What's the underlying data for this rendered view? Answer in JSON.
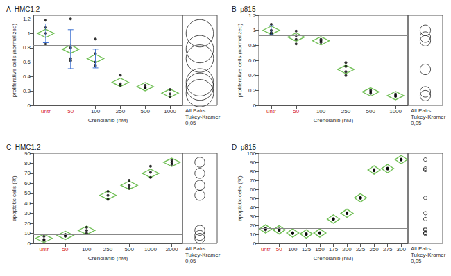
{
  "chart_data": [
    {
      "type": "scatter",
      "panel_label": "A",
      "title": "HMC1.2",
      "x_label": "Crenolanib (nM)",
      "y_label": "proliferative cells (normalized)",
      "categories": [
        "untr",
        "50",
        "100",
        "250",
        "500",
        "1000"
      ],
      "points": {
        "color": "#000000",
        "values": [
          [
            1.18,
            1.08,
            1.0,
            0.85
          ],
          [
            1.2,
            0.8,
            0.65,
            0.62
          ],
          [
            0.92,
            0.72,
            0.6,
            0.55
          ],
          [
            0.42,
            0.3,
            0.28
          ],
          [
            0.28,
            0.25,
            0.24
          ],
          [
            0.22,
            0.16,
            0.12
          ]
        ]
      },
      "means": {
        "color": "#4caf2a",
        "marker": "diamond",
        "values": [
          1.0,
          0.78,
          0.65,
          0.32,
          0.26,
          0.17
        ]
      },
      "sd": [
        0.13,
        0.27,
        0.13,
        null,
        null,
        null
      ],
      "reference_line": 0.83,
      "circles": [
        {
          "center": 1.0,
          "radius": 0.19
        },
        {
          "center": 0.78,
          "radius": 0.19
        },
        {
          "center": 0.65,
          "radius": 0.19
        },
        {
          "center": 0.32,
          "radius": 0.19
        },
        {
          "center": 0.26,
          "radius": 0.19
        },
        {
          "center": 0.17,
          "radius": 0.19
        }
      ],
      "comparison_label": [
        "All Pairs",
        "Tukey-Kramer",
        "0,05"
      ],
      "ylim": [
        0,
        1.25
      ],
      "yticks": [
        0,
        0.2,
        0.4,
        0.6,
        0.8,
        1,
        1.2
      ]
    },
    {
      "type": "scatter",
      "panel_label": "B",
      "title": "p815",
      "x_label": "Crenolanib (nM)",
      "y_label": "proliferative cells (normalized)",
      "categories": [
        "untr",
        "50",
        "100",
        "250",
        "500",
        "1000"
      ],
      "points": {
        "color": "#000000",
        "values": [
          [
            1.08,
            1.0,
            0.97,
            0.95
          ],
          [
            0.99,
            0.93,
            0.88,
            0.82
          ],
          [
            0.88,
            0.86,
            0.84
          ],
          [
            0.57,
            0.52,
            0.45,
            0.4
          ],
          [
            0.2,
            0.18,
            0.16
          ],
          [
            0.15,
            0.13,
            0.12
          ]
        ]
      },
      "means": {
        "color": "#4caf2a",
        "marker": "diamond",
        "values": [
          1.0,
          0.91,
          0.86,
          0.48,
          0.18,
          0.13
        ]
      },
      "sd": [
        0.06,
        null,
        null,
        null,
        null,
        null
      ],
      "reference_line": 0.93,
      "circles": [
        {
          "center": 1.0,
          "radius": 0.07
        },
        {
          "center": 0.91,
          "radius": 0.07
        },
        {
          "center": 0.86,
          "radius": 0.07
        },
        {
          "center": 0.48,
          "radius": 0.07
        },
        {
          "center": 0.18,
          "radius": 0.07
        },
        {
          "center": 0.13,
          "radius": 0.07
        }
      ],
      "comparison_label": [
        "All Pairs",
        "Tukey-Kramer",
        "0,05"
      ],
      "ylim": [
        0,
        1.2
      ],
      "yticks": [
        0,
        0.2,
        0.4,
        0.6,
        0.8,
        1,
        1.2
      ]
    },
    {
      "type": "scatter",
      "panel_label": "C",
      "title": "HMC1.2",
      "x_label": "Crenolanib (nM)",
      "y_label": "apoptotic cells (%)",
      "categories": [
        "untr",
        "50",
        "100",
        "250",
        "500",
        "1000",
        "2000"
      ],
      "points": {
        "color": "#000000",
        "values": [
          [
            7,
            4,
            3
          ],
          [
            9,
            8,
            7
          ],
          [
            16,
            13,
            10
          ],
          [
            52,
            48,
            44
          ],
          [
            63,
            58,
            55
          ],
          [
            77,
            71,
            66
          ],
          [
            83,
            81,
            79
          ]
        ]
      },
      "means": {
        "color": "#4caf2a",
        "marker": "diamond",
        "values": [
          5,
          8,
          13,
          48,
          58,
          70,
          81
        ]
      },
      "sd": [
        null,
        null,
        null,
        null,
        null,
        null,
        null
      ],
      "reference_line": 9,
      "circles": [
        {
          "center": 5,
          "radius": 5
        },
        {
          "center": 8,
          "radius": 5
        },
        {
          "center": 13,
          "radius": 5
        },
        {
          "center": 48,
          "radius": 5
        },
        {
          "center": 58,
          "radius": 5
        },
        {
          "center": 70,
          "radius": 5
        },
        {
          "center": 81,
          "radius": 5
        }
      ],
      "comparison_label": [
        "All Pairs",
        "Tukey-Kramer",
        "0,05"
      ],
      "ylim": [
        0,
        90
      ],
      "yticks": [
        0,
        10,
        20,
        30,
        40,
        50,
        60,
        70,
        80,
        90
      ]
    },
    {
      "type": "scatter",
      "panel_label": "D",
      "title": "p815",
      "x_label": "Crenolanib (nM)",
      "y_label": "apoptotic cells (%)",
      "categories": [
        "untr",
        "50",
        "100",
        "125",
        "150",
        "175",
        "200",
        "225",
        "250",
        "275",
        "300"
      ],
      "points": {
        "color": "#000000",
        "values": [
          [
            17,
            16,
            15
          ],
          [
            16,
            15,
            14
          ],
          [
            12,
            11,
            11
          ],
          [
            11,
            10,
            10
          ],
          [
            12,
            11.5,
            11
          ],
          [
            27.5,
            27,
            26.5
          ],
          [
            34,
            33.5,
            33
          ],
          [
            51,
            50.5,
            50
          ],
          [
            82,
            81,
            80.5
          ],
          [
            83.5,
            83,
            82.5
          ],
          [
            93.5,
            93,
            92.5
          ]
        ]
      },
      "means": {
        "color": "#4caf2a",
        "marker": "diamond",
        "values": [
          16,
          15,
          11.5,
          10.5,
          11.5,
          27,
          33.5,
          50.5,
          81.5,
          83,
          93
        ]
      },
      "sd": [
        null,
        null,
        null,
        null,
        null,
        null,
        null,
        null,
        null,
        null,
        null
      ],
      "reference_line": 17,
      "circles": [
        {
          "center": 16,
          "radius": 2
        },
        {
          "center": 15,
          "radius": 2
        },
        {
          "center": 11.5,
          "radius": 2
        },
        {
          "center": 10.5,
          "radius": 2
        },
        {
          "center": 11.5,
          "radius": 2
        },
        {
          "center": 27,
          "radius": 2
        },
        {
          "center": 33.5,
          "radius": 2
        },
        {
          "center": 50.5,
          "radius": 2
        },
        {
          "center": 81.5,
          "radius": 2
        },
        {
          "center": 83,
          "radius": 2
        },
        {
          "center": 93,
          "radius": 2
        }
      ],
      "comparison_label": [
        "All Pairs",
        "Tukey-Kramer",
        "0,05"
      ],
      "ylim": [
        0,
        100
      ],
      "yticks": [
        0,
        10,
        20,
        30,
        40,
        50,
        60,
        70,
        80,
        90,
        100
      ]
    }
  ]
}
